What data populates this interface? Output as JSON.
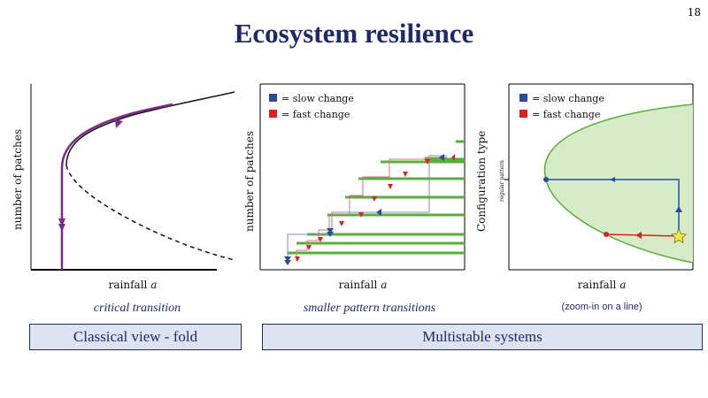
{
  "slide": {
    "number": "18",
    "title": "Ecosystem resilience"
  },
  "panels": [
    {
      "xlabel": "rainfall",
      "xlabel_var": "a",
      "ylabel": "number of patches"
    },
    {
      "xlabel": "rainfall",
      "xlabel_var": "a",
      "ylabel": "number of patches",
      "legend": [
        "= slow change",
        "= fast change"
      ]
    },
    {
      "xlabel": "rainfall",
      "xlabel_var": "a",
      "ylabel": "Configuration type",
      "ytick": "regular pattern",
      "legend": [
        "= slow change",
        "= fast change"
      ]
    }
  ],
  "captions": {
    "left": "critical transition",
    "middle": "smaller pattern transitions",
    "right": "(zoom-in on a line)"
  },
  "boxes": {
    "left": "Classical view - fold",
    "right": "Multistable systems"
  },
  "colors": {
    "title": "#1f2a6b",
    "slow": "#2b4a9b",
    "fast": "#e02020",
    "green": "#55b03a",
    "purple": "#7b2a8c",
    "fill": "#d6ecc8"
  }
}
